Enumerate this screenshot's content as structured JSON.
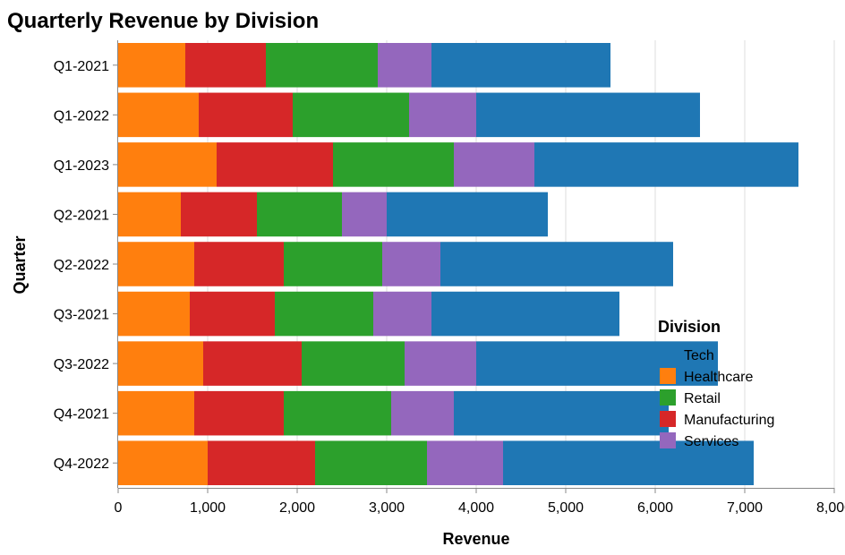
{
  "chart_data": {
    "type": "bar",
    "orientation": "horizontal",
    "stacked": true,
    "title": "Quarterly Revenue by Division",
    "xlabel": "Revenue",
    "ylabel": "Quarter",
    "xlim": [
      0,
      8000
    ],
    "x_ticks": [
      "0",
      "1,000",
      "2,000",
      "3,000",
      "4,000",
      "5,000",
      "6,000",
      "7,000",
      "8,000"
    ],
    "x_tick_values": [
      0,
      1000,
      2000,
      3000,
      4000,
      5000,
      6000,
      7000,
      8000
    ],
    "grid": true,
    "legend": {
      "title": "Division",
      "placement": "bottom-right"
    },
    "categories": [
      "Q1-2021",
      "Q1-2022",
      "Q1-2023",
      "Q2-2021",
      "Q2-2022",
      "Q3-2021",
      "Q3-2022",
      "Q4-2021",
      "Q4-2022"
    ],
    "series": [
      {
        "name": "Tech",
        "color": "#1f77b4",
        "values": [
          2000,
          2500,
          2950,
          1800,
          2600,
          2100,
          2700,
          2400,
          2800
        ]
      },
      {
        "name": "Healthcare",
        "color": "#ff7f0e",
        "values": [
          750,
          900,
          1100,
          700,
          850,
          800,
          950,
          850,
          1000
        ]
      },
      {
        "name": "Retail",
        "color": "#2ca02c",
        "values": [
          1250,
          1300,
          1350,
          950,
          1100,
          1100,
          1150,
          1200,
          1250
        ]
      },
      {
        "name": "Manufacturing",
        "color": "#d62728",
        "values": [
          900,
          1050,
          1300,
          850,
          1000,
          950,
          1100,
          1000,
          1200
        ]
      },
      {
        "name": "Services",
        "color": "#9467bd",
        "values": [
          600,
          750,
          900,
          500,
          650,
          650,
          800,
          700,
          850
        ]
      }
    ],
    "stack_order": [
      "Healthcare",
      "Manufacturing",
      "Retail",
      "Services",
      "Tech"
    ]
  }
}
